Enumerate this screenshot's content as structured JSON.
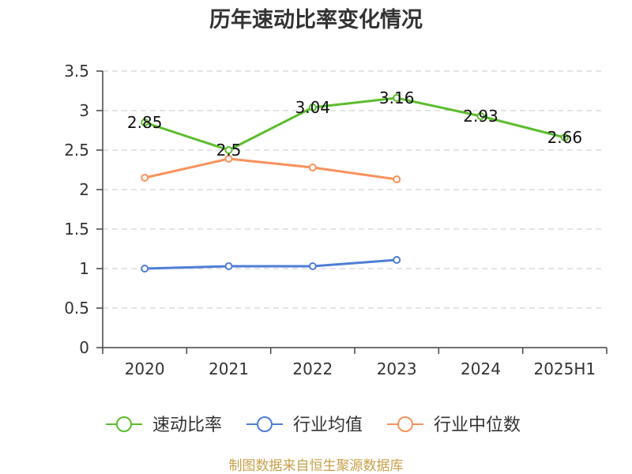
{
  "footer": {
    "text": "制图数据来自恒生聚源数据库",
    "color": "#c8a04a"
  },
  "chart_data": {
    "type": "line",
    "title": "历年速动比率变化情况",
    "categories": [
      "2020",
      "2021",
      "2022",
      "2023",
      "2024",
      "2025H1"
    ],
    "ylim": [
      0,
      3.5
    ],
    "y_ticks": [
      0,
      0.5,
      1,
      1.5,
      2,
      2.5,
      3,
      3.5
    ],
    "grid": true,
    "legend_position": "bottom",
    "series": [
      {
        "name": "速动比率",
        "color": "#5cbd2d",
        "data_labels": true,
        "values": [
          2.85,
          2.5,
          3.04,
          3.16,
          2.93,
          2.66
        ]
      },
      {
        "name": "行业均值",
        "color": "#4e7ed6",
        "data_labels": false,
        "values": [
          1.0,
          1.03,
          1.03,
          1.11,
          null,
          null
        ]
      },
      {
        "name": "行业中位数",
        "color": "#f7925c",
        "data_labels": false,
        "values": [
          2.15,
          2.39,
          2.28,
          2.13,
          null,
          null
        ]
      }
    ]
  }
}
